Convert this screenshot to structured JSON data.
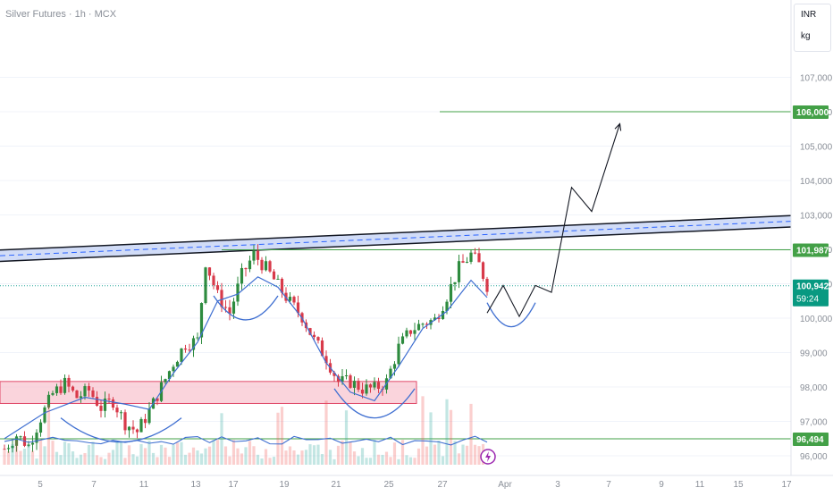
{
  "header": {
    "ticker": "Silver Futures · 1h · MCX",
    "currency": "INR",
    "unit": "kg"
  },
  "colors": {
    "up": "#26a69a",
    "down": "#ef5350",
    "up_candle": "#2e8b3f",
    "down_candle": "#d83a4a",
    "level_line": "#43a047",
    "channel_fill": "#c5d3f5",
    "channel_dash": "#2962ff",
    "zone_fill": "#f8c6d0",
    "zone_border": "#e04a6a",
    "ma": "#3f6fd1",
    "projection": "#131722",
    "price_label_bg": "#089981"
  },
  "chart_data": {
    "type": "candlestick",
    "title": "Silver Futures · 1h · MCX",
    "y_axis": {
      "min": 95500,
      "max": 107400,
      "ticks": [
        96000,
        97000,
        98000,
        99000,
        100000,
        101000,
        102000,
        103000,
        104000,
        105000,
        106000,
        107000
      ],
      "tick_labels": [
        "96,000",
        "97,000",
        "98,000",
        "99,000",
        "100,000",
        "101,000",
        "102,000",
        "103,000",
        "104,000",
        "105,000",
        "106,000",
        "107,000"
      ],
      "side": "right"
    },
    "x_axis": {
      "tick_labels": [
        "5",
        "7",
        "11",
        "13",
        "17",
        "19",
        "21",
        "25",
        "27",
        "Apr",
        "3",
        "7",
        "9",
        "11",
        "15",
        "17"
      ],
      "first_label": "5",
      "last_label": "17"
    },
    "price_labels": [
      {
        "value": 106000,
        "text": "106,000",
        "role": "target level"
      },
      {
        "value": 101987,
        "text": "101,987",
        "role": "resistance level"
      },
      {
        "value": 100942,
        "text": "100,942",
        "role": "current price",
        "countdown": "59:24"
      },
      {
        "value": 96494,
        "text": "96,494",
        "role": "support level"
      }
    ],
    "horizontal_levels": [
      106000,
      101987,
      96494
    ],
    "current_price": 100942,
    "countdown": "59:24",
    "demand_zone": {
      "from": 97520,
      "to": 98160
    },
    "ascending_channel": {
      "upper_start": 101980,
      "upper_end": 102980,
      "lower_start": 101650,
      "lower_end": 102650
    },
    "close_path": [
      [
        0,
        96200
      ],
      [
        3,
        96600
      ],
      [
        6,
        96300
      ],
      [
        9,
        97100
      ],
      [
        12,
        97800
      ],
      [
        15,
        98100
      ],
      [
        18,
        97700
      ],
      [
        21,
        97900
      ],
      [
        24,
        97400
      ],
      [
        27,
        97600
      ],
      [
        30,
        96950
      ],
      [
        33,
        96700
      ],
      [
        36,
        97300
      ],
      [
        39,
        98000
      ],
      [
        42,
        98700
      ],
      [
        45,
        99250
      ],
      [
        48,
        99350
      ],
      [
        50,
        101650
      ],
      [
        53,
        100650
      ],
      [
        56,
        100150
      ],
      [
        59,
        101250
      ],
      [
        62,
        101850
      ],
      [
        65,
        101450
      ],
      [
        68,
        100950
      ],
      [
        71,
        100450
      ],
      [
        74,
        100050
      ],
      [
        77,
        99350
      ],
      [
        80,
        98850
      ],
      [
        83,
        98150
      ],
      [
        86,
        98150
      ],
      [
        89,
        97950
      ],
      [
        92,
        97950
      ],
      [
        95,
        98150
      ],
      [
        98,
        99150
      ],
      [
        101,
        99650
      ],
      [
        104,
        99850
      ],
      [
        107,
        99950
      ],
      [
        110,
        100650
      ],
      [
        113,
        101450
      ],
      [
        116,
        101850
      ],
      [
        118,
        101550
      ],
      [
        120,
        100950
      ]
    ],
    "moving_average": [
      [
        0,
        96500
      ],
      [
        10,
        97250
      ],
      [
        20,
        97700
      ],
      [
        30,
        97500
      ],
      [
        36,
        97350
      ],
      [
        42,
        98400
      ],
      [
        48,
        99300
      ],
      [
        53,
        100500
      ],
      [
        58,
        100700
      ],
      [
        63,
        101200
      ],
      [
        68,
        100900
      ],
      [
        74,
        100000
      ],
      [
        80,
        98700
      ],
      [
        86,
        97850
      ],
      [
        92,
        97600
      ],
      [
        98,
        98600
      ],
      [
        104,
        99700
      ],
      [
        110,
        100200
      ],
      [
        116,
        101100
      ],
      [
        120,
        100600
      ]
    ],
    "projection_path": [
      [
        120,
        100150
      ],
      [
        124,
        100950
      ],
      [
        128,
        100050
      ],
      [
        132,
        100950
      ],
      [
        136,
        100750
      ],
      [
        141,
        103800
      ],
      [
        146,
        103100
      ],
      [
        153,
        105650
      ]
    ],
    "bullish_arcs": [
      {
        "x_from": 14,
        "x_to": 44,
        "y_top": 97100,
        "y_bottom": 96400
      },
      {
        "x_from": 52,
        "x_to": 68,
        "y_top": 100650,
        "y_bottom": 99950
      },
      {
        "x_from": 82,
        "x_to": 102,
        "y_top": 97950,
        "y_bottom": 97100
      },
      {
        "x_from": 120,
        "x_to": 132,
        "y_top": 100450,
        "y_bottom": 99750
      }
    ]
  }
}
